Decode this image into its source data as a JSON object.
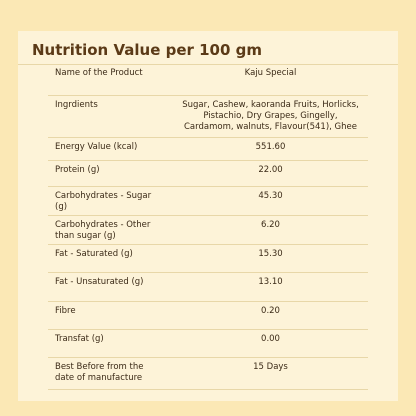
{
  "title": "Nutrition Value per 100 gm",
  "table": {
    "rows": [
      [
        "Name of the Product",
        "Kaju Special"
      ],
      [
        "Ingrdients",
        "Sugar, Cashew, kaoranda Fruits, Horlicks, Pistachio, Dry Grapes, Gingelly, Cardamom, walnuts, Flavour(541), Ghee"
      ],
      [
        "Energy Value (kcal)",
        "551.60"
      ],
      [
        "Protein (g)",
        "22.00"
      ],
      [
        "Carbohydrates - Sugar (g)",
        "45.30"
      ],
      [
        "Carbohydrates - Other than sugar (g)",
        "6.20"
      ],
      [
        "Fat - Saturated (g)",
        "15.30"
      ],
      [
        "Fat - Unsaturated (g)",
        "13.10"
      ],
      [
        "Fibre",
        "0.20"
      ],
      [
        "Transfat (g)",
        "0.00"
      ],
      [
        "Best Before from the date of manufacture",
        "15 Days"
      ]
    ]
  }
}
